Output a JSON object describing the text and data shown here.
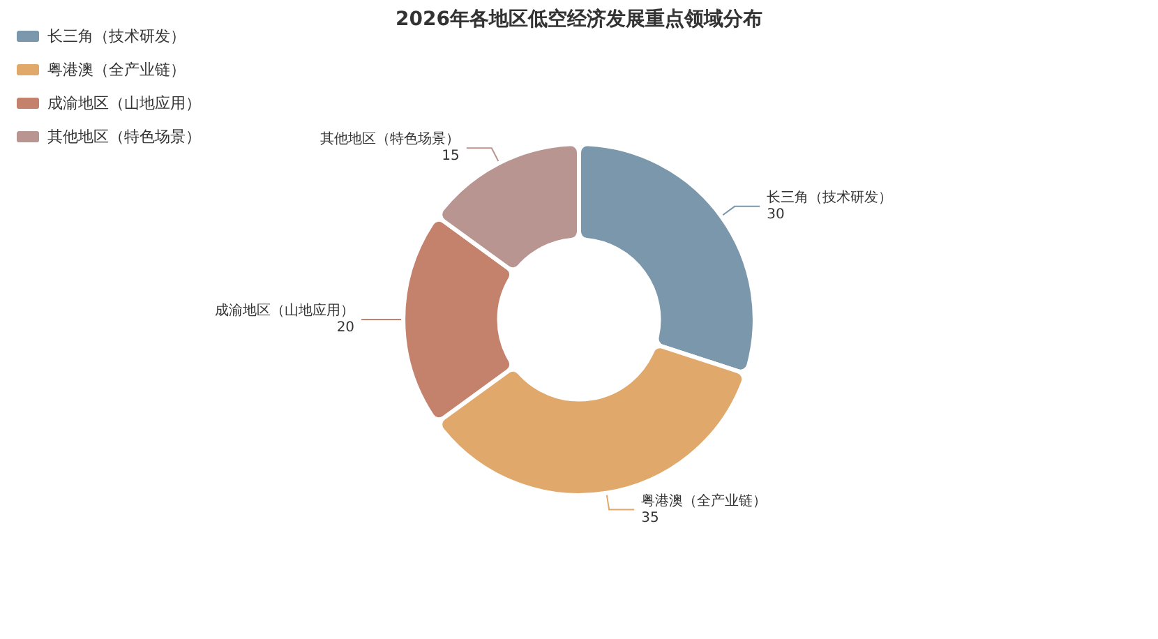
{
  "chart_data": {
    "type": "donut",
    "title": "2026年各地区低空经济发展重点领域分布",
    "categories": [
      "长三角（技术研发）",
      "粤港澳（全产业链）",
      "成渝地区（山地应用）",
      "其他地区（特色场景）"
    ],
    "values": [
      30,
      35,
      20,
      15
    ],
    "colors": [
      "#7a97ab",
      "#e0a96b",
      "#c4826c",
      "#b89590"
    ],
    "data_labels": true,
    "legend": "top left"
  }
}
